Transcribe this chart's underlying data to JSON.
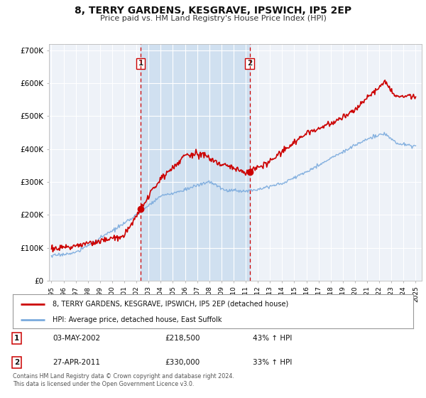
{
  "title": "8, TERRY GARDENS, KESGRAVE, IPSWICH, IP5 2EP",
  "subtitle": "Price paid vs. HM Land Registry's House Price Index (HPI)",
  "red_label": "8, TERRY GARDENS, KESGRAVE, IPSWICH, IP5 2EP (detached house)",
  "blue_label": "HPI: Average price, detached house, East Suffolk",
  "marker1_date_num": 2002.34,
  "marker1_label": "03-MAY-2002",
  "marker1_price": "£218,500",
  "marker1_pct": "43% ↑ HPI",
  "marker1_value": 218500,
  "marker2_date_num": 2011.32,
  "marker2_label": "27-APR-2011",
  "marker2_price": "£330,000",
  "marker2_pct": "33% ↑ HPI",
  "marker2_value": 330000,
  "footer": "Contains HM Land Registry data © Crown copyright and database right 2024.\nThis data is licensed under the Open Government Licence v3.0.",
  "ylim": [
    0,
    720000
  ],
  "yticks": [
    0,
    100000,
    200000,
    300000,
    400000,
    500000,
    600000,
    700000
  ],
  "ytick_labels": [
    "£0",
    "£100K",
    "£200K",
    "£300K",
    "£400K",
    "£500K",
    "£600K",
    "£700K"
  ],
  "fig_bg": "#ffffff",
  "plot_bg": "#eef2f8",
  "grid_color": "#ffffff",
  "red_color": "#cc0000",
  "blue_color": "#7aaadd",
  "shade_color": "#d0e0f0",
  "xlim_left": 1994.8,
  "xlim_right": 2025.5
}
